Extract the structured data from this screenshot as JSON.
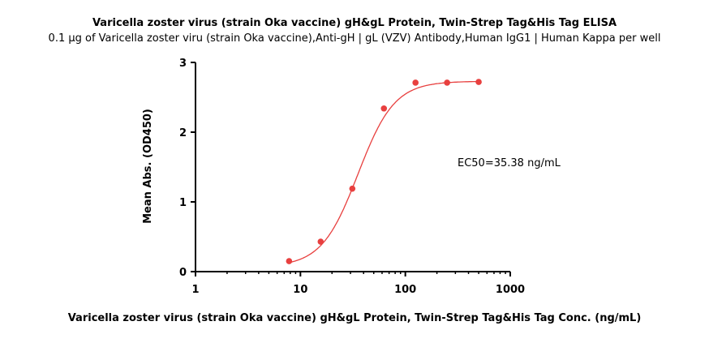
{
  "chart_data": {
    "type": "scatter",
    "title": "Varicella zoster virus (strain Oka vaccine) gH&gL Protein, Twin-Strep Tag&His Tag ELISA",
    "subtitle": "0.1 μg of Varicella zoster viru (strain Oka vaccine),Anti-gH | gL (VZV) Antibody,Human IgG1 | Human Kappa per well",
    "xlabel": "Varicella zoster virus (strain Oka vaccine) gH&gL Protein, Twin-Strep Tag&His Tag Conc. (ng/mL)",
    "ylabel": "Mean Abs. (OD450)",
    "xscale": "log",
    "xlim": [
      1,
      1000
    ],
    "ylim": [
      0,
      3
    ],
    "xticks": [
      "1",
      "10",
      "100",
      "1000"
    ],
    "yticks": [
      "0",
      "1",
      "2",
      "3"
    ],
    "annotation": "EC50=35.38 ng/mL",
    "series": [
      {
        "x": [
          7.8,
          15.6,
          31.25,
          62.5,
          125,
          250,
          500
        ],
        "y": [
          0.15,
          0.43,
          1.19,
          2.34,
          2.71,
          2.71,
          2.72
        ],
        "color": "#e8403f"
      }
    ],
    "fit": {
      "bottom": 0.07,
      "top": 2.73,
      "ec50": 35.38,
      "hill": 2.5,
      "color": "#e8403f"
    }
  }
}
